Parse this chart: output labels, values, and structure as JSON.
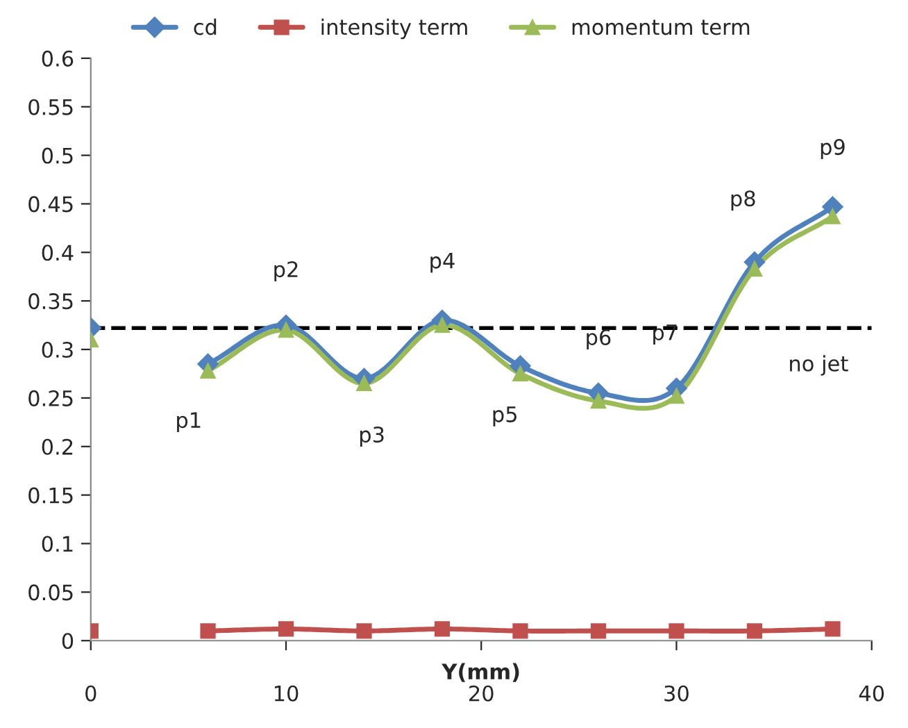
{
  "chart_data": {
    "type": "line",
    "xlabel": "Y(mm)",
    "x": [
      0,
      3,
      6,
      10,
      14,
      18,
      22,
      26,
      30,
      34,
      38
    ],
    "series": [
      {
        "name": "cd",
        "color": "#4f81bd",
        "marker": "diamond",
        "values": [
          0.322,
          null,
          0.285,
          0.325,
          0.27,
          0.33,
          0.283,
          0.255,
          0.26,
          0.39,
          0.447
        ]
      },
      {
        "name": "intensity term",
        "color": "#c0504d",
        "marker": "square",
        "values": [
          0.01,
          null,
          0.01,
          0.012,
          0.01,
          0.012,
          0.01,
          0.01,
          0.01,
          0.01,
          0.012
        ]
      },
      {
        "name": "momentum term",
        "color": "#9bbb59",
        "marker": "triangle",
        "values": [
          0.31,
          null,
          0.278,
          0.32,
          0.265,
          0.325,
          0.275,
          0.247,
          0.252,
          0.383,
          0.437
        ]
      }
    ],
    "xlim": [
      0,
      40
    ],
    "xticks": [
      0,
      10,
      20,
      30,
      40
    ],
    "ylim": [
      0,
      0.6
    ],
    "yticks": [
      0,
      0.05,
      0.1,
      0.15,
      0.2,
      0.25,
      0.3,
      0.35,
      0.4,
      0.45,
      0.5,
      0.55,
      0.6
    ],
    "ref_lines": [
      {
        "axis": "y",
        "value": 0.322,
        "color": "#000000",
        "line_style": "dashed",
        "label": "no jet"
      }
    ],
    "annotations": [
      {
        "text": "p1",
        "x": 6,
        "y": 0.285
      },
      {
        "text": "p2",
        "x": 10,
        "y": 0.325
      },
      {
        "text": "p3",
        "x": 14,
        "y": 0.27
      },
      {
        "text": "p4",
        "x": 18,
        "y": 0.33
      },
      {
        "text": "p5",
        "x": 22,
        "y": 0.283
      },
      {
        "text": "p6",
        "x": 26,
        "y": 0.255
      },
      {
        "text": "p7",
        "x": 30,
        "y": 0.26
      },
      {
        "text": "p8",
        "x": 34,
        "y": 0.39
      },
      {
        "text": "p9",
        "x": 38,
        "y": 0.447
      }
    ],
    "grid": false,
    "legend": "top"
  }
}
